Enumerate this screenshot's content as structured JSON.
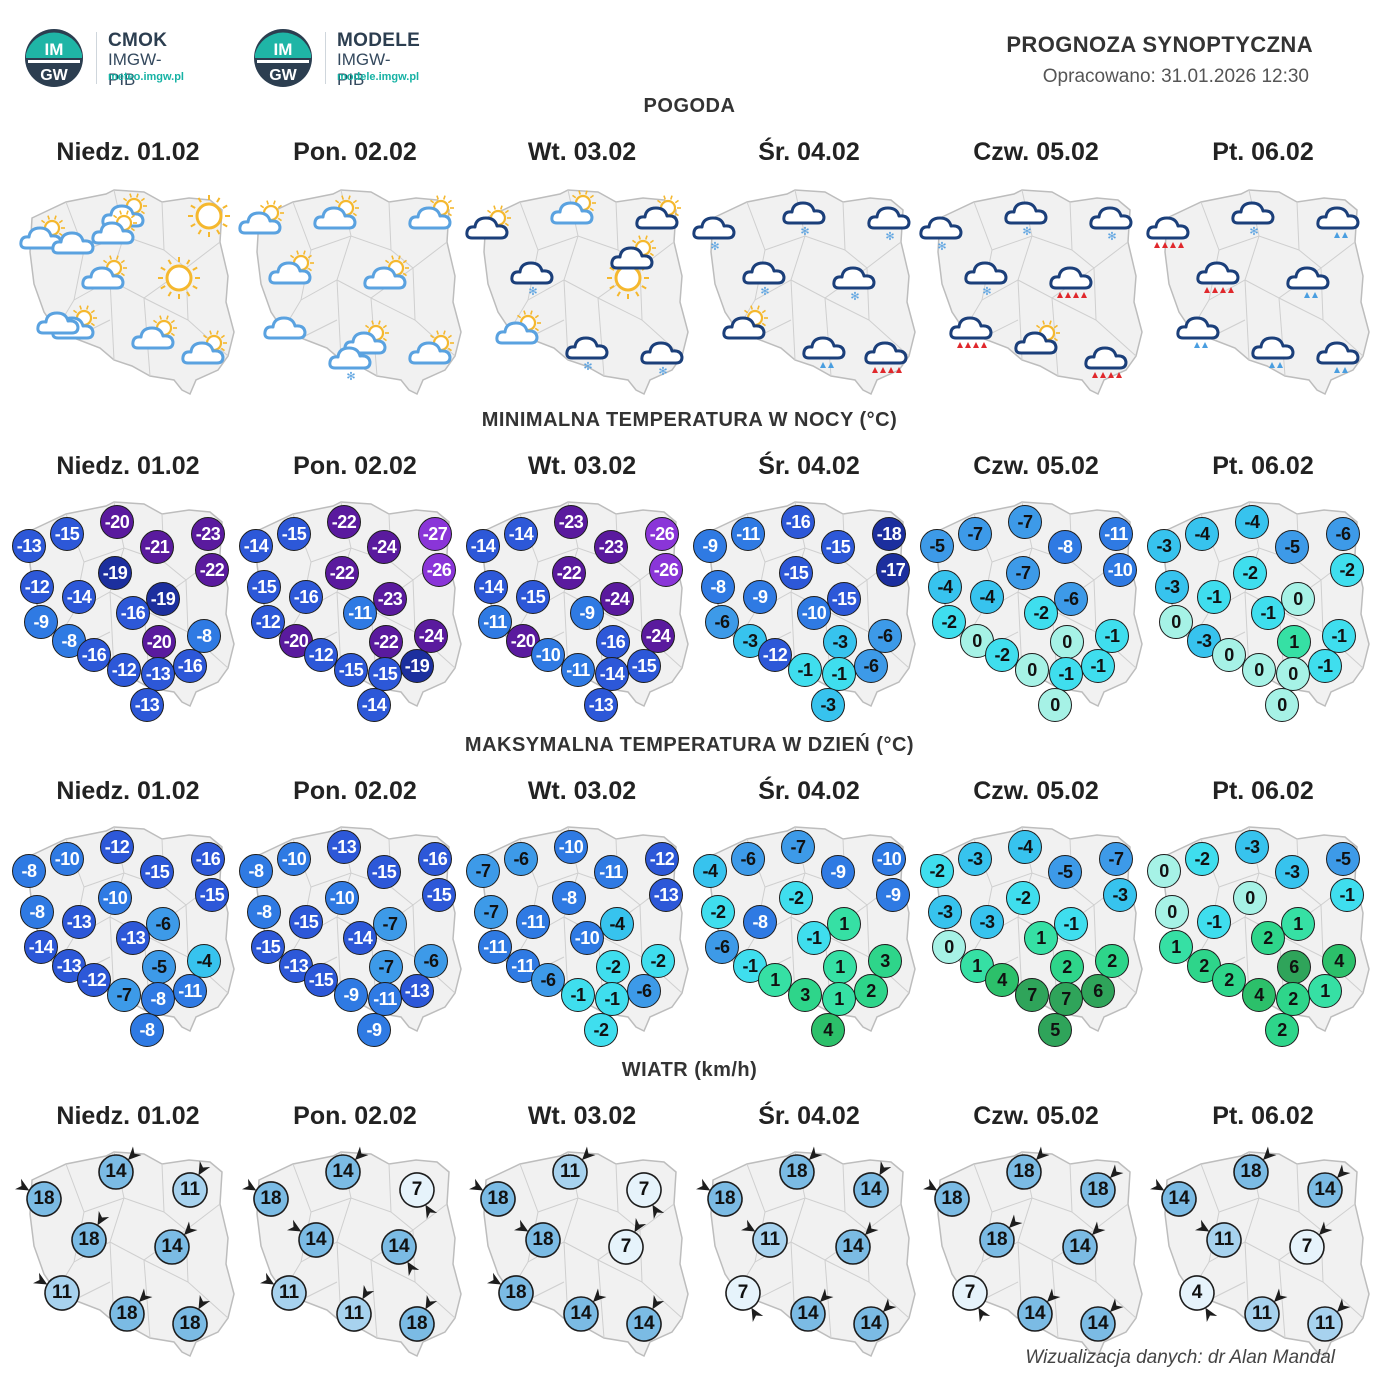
{
  "logos": [
    {
      "name": "cmok",
      "badge_top": "IM",
      "badge_bottom": "GW",
      "title": "CMOK",
      "subtitle": "IMGW-PIB",
      "url": "meteo.imgw.pl"
    },
    {
      "name": "modele",
      "badge_top": "IM",
      "badge_bottom": "GW",
      "title": "MODELE",
      "subtitle": "IMGW-PIB",
      "url": "modele.imgw.pl"
    }
  ],
  "header": {
    "title": "PROGNOZA SYNOPTYCZNA",
    "date": "Opracowano: 31.01.2026 12:30"
  },
  "days": [
    "Niedz. 01.02",
    "Pon. 02.02",
    "Wt. 03.02",
    "Śr. 04.02",
    "Czw. 05.02",
    "Pt. 06.02"
  ],
  "sections": {
    "weather": "POGODA",
    "tmin": "MINIMALNA TEMPERATURA W NOCY (°C)",
    "tmax": "MAKSYMALNA TEMPERATURA W DZIEŃ (°C)",
    "wind": "WIATR (km/h)"
  },
  "colors": {
    "sun": "#f5b82e",
    "cloud_light": "#5aa2e0",
    "cloud_dark": "#1b3f7a",
    "snow": "#5aa2e0",
    "rain_red": "#e0282c",
    "rain_blue": "#4a9ee0",
    "map_fill": "#f1f1f1",
    "map_border": "#bdbdbd"
  },
  "weather": [
    [
      "cloud-sun",
      "sun-cloud-small",
      "sun",
      "cloud-sun",
      "sun",
      "cloud-sun",
      "sun-cloud-small",
      "cloud-sun",
      "cloud",
      "sun-cloud-small",
      "cloud"
    ],
    [
      "cloud-sun-light",
      "cloud-sun",
      "sun-cloud-small",
      "sun-cloud-small",
      "cloud-sun",
      "cloud",
      "cloud-sun",
      "cloud-snow",
      "cloud-sun"
    ],
    [
      "cloud-dark-sun",
      "cloud-sun",
      "cloud-dark-sun",
      "cloud-dark-snow",
      "sun",
      "cloud-sun",
      "cloud-dark-snow",
      "cloud-dark-snow",
      "cloud-dark-sun"
    ],
    [
      "cloud-dark-snow",
      "cloud-dark-snow",
      "cloud-dark-snow",
      "cloud-dark-snow",
      "cloud-dark-snow",
      "cloud-dark-sun",
      "cloud-dark-rain-blue",
      "cloud-dark-rain-red"
    ],
    [
      "cloud-dark-snow",
      "cloud-dark-snow",
      "cloud-dark-snow",
      "cloud-dark-snow",
      "cloud-dark-rain-red",
      "cloud-dark-rain-red",
      "cloud-dark-sun",
      "cloud-dark-rain-red"
    ],
    [
      "cloud-dark-rain-red",
      "cloud-dark-snow",
      "cloud-dark-rain-blue",
      "cloud-dark-rain-red",
      "cloud-dark-rain-blue",
      "cloud-dark-rain-blue",
      "cloud-dark-rain-blue",
      "cloud-dark-rain-blue"
    ]
  ],
  "tmin": [
    [
      -13,
      -15,
      -20,
      -21,
      -23,
      -22,
      -12,
      -14,
      -19,
      -9,
      -19,
      -16,
      -8,
      -8,
      -16,
      -20,
      -12,
      -13,
      -16,
      -13
    ],
    [
      -14,
      -15,
      -22,
      -24,
      -27,
      -26,
      -15,
      -16,
      -22,
      -12,
      -23,
      -11,
      -20,
      -24,
      -12,
      -22,
      -15,
      -15,
      -19,
      -14
    ],
    [
      -14,
      -14,
      -23,
      -23,
      -26,
      -26,
      -14,
      -15,
      -22,
      -11,
      -24,
      -9,
      -20,
      -24,
      -10,
      -16,
      -11,
      -14,
      -15,
      -13
    ],
    [
      -9,
      -11,
      -16,
      -15,
      -18,
      -17,
      -8,
      -9,
      -15,
      -6,
      -15,
      -10,
      -3,
      -6,
      -12,
      -3,
      -1,
      -1,
      -6,
      -3
    ],
    [
      -5,
      -7,
      -7,
      -8,
      -11,
      -10,
      -4,
      -4,
      -7,
      -2,
      -6,
      -2,
      0,
      -1,
      -2,
      0,
      0,
      -1,
      -1,
      0
    ],
    [
      -3,
      -4,
      -4,
      -5,
      -6,
      -2,
      -3,
      -1,
      -2,
      0,
      0,
      -1,
      -3,
      -1,
      0,
      1,
      0,
      0,
      -1,
      0
    ]
  ],
  "tmax": [
    [
      -8,
      -10,
      -12,
      -15,
      -16,
      -15,
      -8,
      -13,
      -10,
      -14,
      -6,
      -13,
      -13,
      -4,
      -12,
      -5,
      -7,
      -8,
      -11,
      -8
    ],
    [
      -8,
      -10,
      -13,
      -15,
      -16,
      -15,
      -8,
      -15,
      -10,
      -15,
      -7,
      -14,
      -13,
      -6,
      -15,
      -7,
      -9,
      -11,
      -13,
      -9
    ],
    [
      -7,
      -6,
      -10,
      -11,
      -12,
      -13,
      -7,
      -11,
      -8,
      -11,
      -4,
      -10,
      -11,
      -2,
      -6,
      -2,
      -1,
      -1,
      -6,
      -2
    ],
    [
      -4,
      -6,
      -7,
      -9,
      -10,
      -9,
      -2,
      -8,
      -2,
      -6,
      1,
      -1,
      -1,
      3,
      1,
      1,
      3,
      1,
      2,
      4
    ],
    [
      -2,
      -3,
      -4,
      -5,
      -7,
      -3,
      -3,
      -3,
      -2,
      0,
      -1,
      1,
      1,
      2,
      4,
      2,
      7,
      7,
      6,
      5
    ],
    [
      0,
      -2,
      -3,
      -3,
      -5,
      -1,
      0,
      -1,
      0,
      1,
      1,
      2,
      2,
      4,
      2,
      6,
      4,
      2,
      1,
      2
    ]
  ],
  "wind": [
    [
      18,
      14,
      11,
      18,
      14,
      11,
      18,
      18
    ],
    [
      18,
      14,
      7,
      14,
      14,
      11,
      11,
      18
    ],
    [
      18,
      11,
      7,
      18,
      7,
      18,
      14,
      14
    ],
    [
      18,
      18,
      14,
      11,
      14,
      7,
      14,
      14
    ],
    [
      18,
      18,
      18,
      18,
      14,
      7,
      14,
      14
    ],
    [
      14,
      18,
      14,
      11,
      7,
      4,
      11,
      11
    ]
  ],
  "footer": "Wizualizacja danych: dr Alan Mandal"
}
